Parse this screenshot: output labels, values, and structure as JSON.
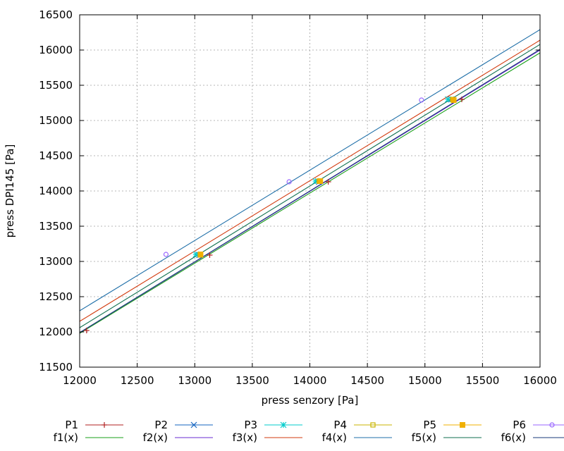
{
  "chart_data": {
    "type": "scatter",
    "title": "",
    "xlabel": "press senzory [Pa]",
    "ylabel": "press DPI145 [Pa]",
    "xlim": [
      12000,
      16000
    ],
    "ylim": [
      11500,
      16500
    ],
    "x_ticks": [
      12000,
      12500,
      13000,
      13500,
      14000,
      14500,
      15000,
      15500,
      16000
    ],
    "y_ticks": [
      11500,
      12000,
      12500,
      13000,
      13500,
      14000,
      14500,
      15000,
      15500,
      16000,
      16500
    ],
    "grid": true,
    "legend_position": "bottom",
    "series": [
      {
        "name": "P1",
        "kind": "points",
        "marker": "plus",
        "color": "#b22222",
        "points": [
          [
            12060,
            12020
          ],
          [
            13130,
            13090
          ],
          [
            14160,
            14130
          ],
          [
            15320,
            15300
          ]
        ]
      },
      {
        "name": "P2",
        "kind": "points",
        "marker": "cross",
        "color": "#1565c0",
        "points": [
          [
            13040,
            13090
          ],
          [
            14080,
            14130
          ],
          [
            15230,
            15300
          ]
        ]
      },
      {
        "name": "P3",
        "kind": "points",
        "marker": "star",
        "color": "#00cccc",
        "points": [
          [
            13010,
            13100
          ],
          [
            14050,
            14140
          ],
          [
            15200,
            15300
          ]
        ]
      },
      {
        "name": "P4",
        "kind": "points",
        "marker": "square-open",
        "color": "#c8b400",
        "points": [
          [
            13050,
            13090
          ],
          [
            14080,
            14140
          ],
          [
            15240,
            15300
          ]
        ]
      },
      {
        "name": "P5",
        "kind": "points",
        "marker": "square-filled",
        "color": "#f0b000",
        "points": [
          [
            13050,
            13100
          ],
          [
            14090,
            14140
          ],
          [
            15250,
            15290
          ]
        ]
      },
      {
        "name": "P6",
        "kind": "points",
        "marker": "circle-open",
        "color": "#9966ff",
        "points": [
          [
            12750,
            13100
          ],
          [
            13820,
            14130
          ],
          [
            14970,
            15290
          ]
        ]
      },
      {
        "name": "f1(x)",
        "kind": "line",
        "color": "#1a9f1a",
        "points": [
          [
            12000,
            11980
          ],
          [
            16000,
            15960
          ]
        ]
      },
      {
        "name": "f2(x)",
        "kind": "line",
        "color": "#6a2bd0",
        "points": [
          [
            12000,
            11990
          ],
          [
            16000,
            16000
          ]
        ]
      },
      {
        "name": "f3(x)",
        "kind": "line",
        "color": "#d23b0f",
        "points": [
          [
            12000,
            12150
          ],
          [
            16000,
            16140
          ]
        ]
      },
      {
        "name": "f4(x)",
        "kind": "line",
        "color": "#1f6fa8",
        "points": [
          [
            12000,
            12300
          ],
          [
            16000,
            16290
          ]
        ]
      },
      {
        "name": "f5(x)",
        "kind": "line",
        "color": "#0f6f4f",
        "points": [
          [
            12000,
            12060
          ],
          [
            16000,
            16080
          ]
        ]
      },
      {
        "name": "f6(x)",
        "kind": "line",
        "color": "#1a3a7a",
        "points": [
          [
            12000,
            11990
          ],
          [
            16000,
            16010
          ]
        ]
      }
    ]
  }
}
